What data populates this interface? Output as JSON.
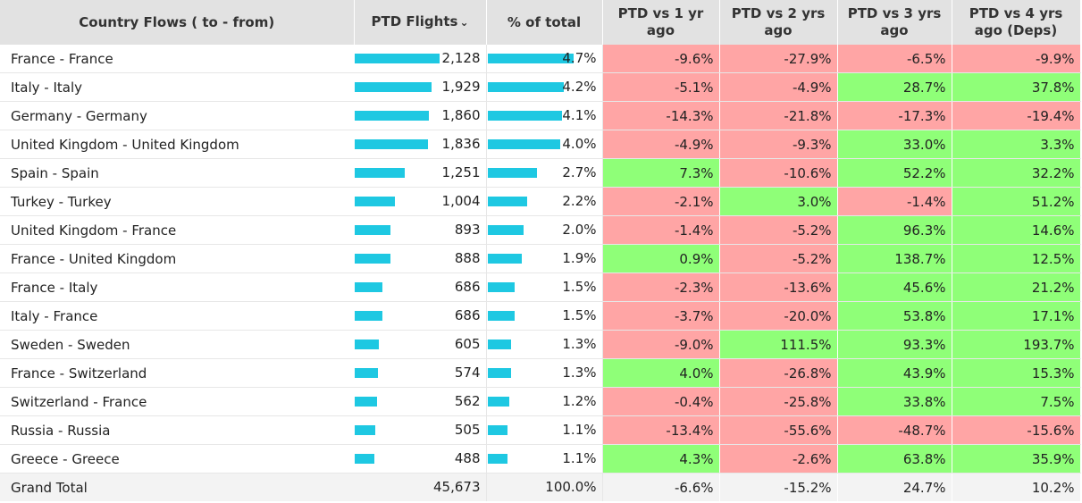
{
  "header": {
    "country": "Country Flows ( to - from)",
    "flights": "PTD Flights",
    "pct_total": "% of total",
    "vs1": "PTD vs 1 yr ago",
    "vs2": "PTD vs 2 yrs ago",
    "vs3": "PTD vs 3 yrs ago",
    "vs4": "PTD vs 4 yrs ago (Deps)"
  },
  "colors": {
    "positive": "#8fff78",
    "negative": "#ffa5a5",
    "bar": "#1ec8e2",
    "header_bg": "#e2e2e2"
  },
  "max_flights": 2128,
  "max_share": 4.7,
  "rows": [
    {
      "name": "France - France",
      "flights": "2,128",
      "flights_num": 2128,
      "share": "4.7%",
      "share_num": 4.7,
      "vs1": "-9.6%",
      "vs2": "-27.9%",
      "vs3": "-6.5%",
      "vs4": "-9.9%"
    },
    {
      "name": "Italy - Italy",
      "flights": "1,929",
      "flights_num": 1929,
      "share": "4.2%",
      "share_num": 4.2,
      "vs1": "-5.1%",
      "vs2": "-4.9%",
      "vs3": "28.7%",
      "vs4": "37.8%"
    },
    {
      "name": "Germany - Germany",
      "flights": "1,860",
      "flights_num": 1860,
      "share": "4.1%",
      "share_num": 4.1,
      "vs1": "-14.3%",
      "vs2": "-21.8%",
      "vs3": "-17.3%",
      "vs4": "-19.4%"
    },
    {
      "name": "United Kingdom - United Kingdom",
      "flights": "1,836",
      "flights_num": 1836,
      "share": "4.0%",
      "share_num": 4.0,
      "vs1": "-4.9%",
      "vs2": "-9.3%",
      "vs3": "33.0%",
      "vs4": "3.3%"
    },
    {
      "name": "Spain - Spain",
      "flights": "1,251",
      "flights_num": 1251,
      "share": "2.7%",
      "share_num": 2.7,
      "vs1": "7.3%",
      "vs2": "-10.6%",
      "vs3": "52.2%",
      "vs4": "32.2%"
    },
    {
      "name": "Turkey - Turkey",
      "flights": "1,004",
      "flights_num": 1004,
      "share": "2.2%",
      "share_num": 2.2,
      "vs1": "-2.1%",
      "vs2": "3.0%",
      "vs3": "-1.4%",
      "vs4": "51.2%"
    },
    {
      "name": "United Kingdom - France",
      "flights": "893",
      "flights_num": 893,
      "share": "2.0%",
      "share_num": 2.0,
      "vs1": "-1.4%",
      "vs2": "-5.2%",
      "vs3": "96.3%",
      "vs4": "14.6%"
    },
    {
      "name": "France - United Kingdom",
      "flights": "888",
      "flights_num": 888,
      "share": "1.9%",
      "share_num": 1.9,
      "vs1": "0.9%",
      "vs2": "-5.2%",
      "vs3": "138.7%",
      "vs4": "12.5%"
    },
    {
      "name": "France - Italy",
      "flights": "686",
      "flights_num": 686,
      "share": "1.5%",
      "share_num": 1.5,
      "vs1": "-2.3%",
      "vs2": "-13.6%",
      "vs3": "45.6%",
      "vs4": "21.2%"
    },
    {
      "name": "Italy - France",
      "flights": "686",
      "flights_num": 686,
      "share": "1.5%",
      "share_num": 1.5,
      "vs1": "-3.7%",
      "vs2": "-20.0%",
      "vs3": "53.8%",
      "vs4": "17.1%"
    },
    {
      "name": "Sweden - Sweden",
      "flights": "605",
      "flights_num": 605,
      "share": "1.3%",
      "share_num": 1.3,
      "vs1": "-9.0%",
      "vs2": "111.5%",
      "vs3": "93.3%",
      "vs4": "193.7%"
    },
    {
      "name": "France - Switzerland",
      "flights": "574",
      "flights_num": 574,
      "share": "1.3%",
      "share_num": 1.3,
      "vs1": "4.0%",
      "vs2": "-26.8%",
      "vs3": "43.9%",
      "vs4": "15.3%"
    },
    {
      "name": "Switzerland - France",
      "flights": "562",
      "flights_num": 562,
      "share": "1.2%",
      "share_num": 1.2,
      "vs1": "-0.4%",
      "vs2": "-25.8%",
      "vs3": "33.8%",
      "vs4": "7.5%"
    },
    {
      "name": "Russia - Russia",
      "flights": "505",
      "flights_num": 505,
      "share": "1.1%",
      "share_num": 1.1,
      "vs1": "-13.4%",
      "vs2": "-55.6%",
      "vs3": "-48.7%",
      "vs4": "-15.6%"
    },
    {
      "name": "Greece - Greece",
      "flights": "488",
      "flights_num": 488,
      "share": "1.1%",
      "share_num": 1.1,
      "vs1": "4.3%",
      "vs2": "-2.6%",
      "vs3": "63.8%",
      "vs4": "35.9%"
    }
  ],
  "total": {
    "name": "Grand Total",
    "flights": "45,673",
    "share": "100.0%",
    "vs1": "-6.6%",
    "vs2": "-15.2%",
    "vs3": "24.7%",
    "vs4": "10.2%"
  }
}
